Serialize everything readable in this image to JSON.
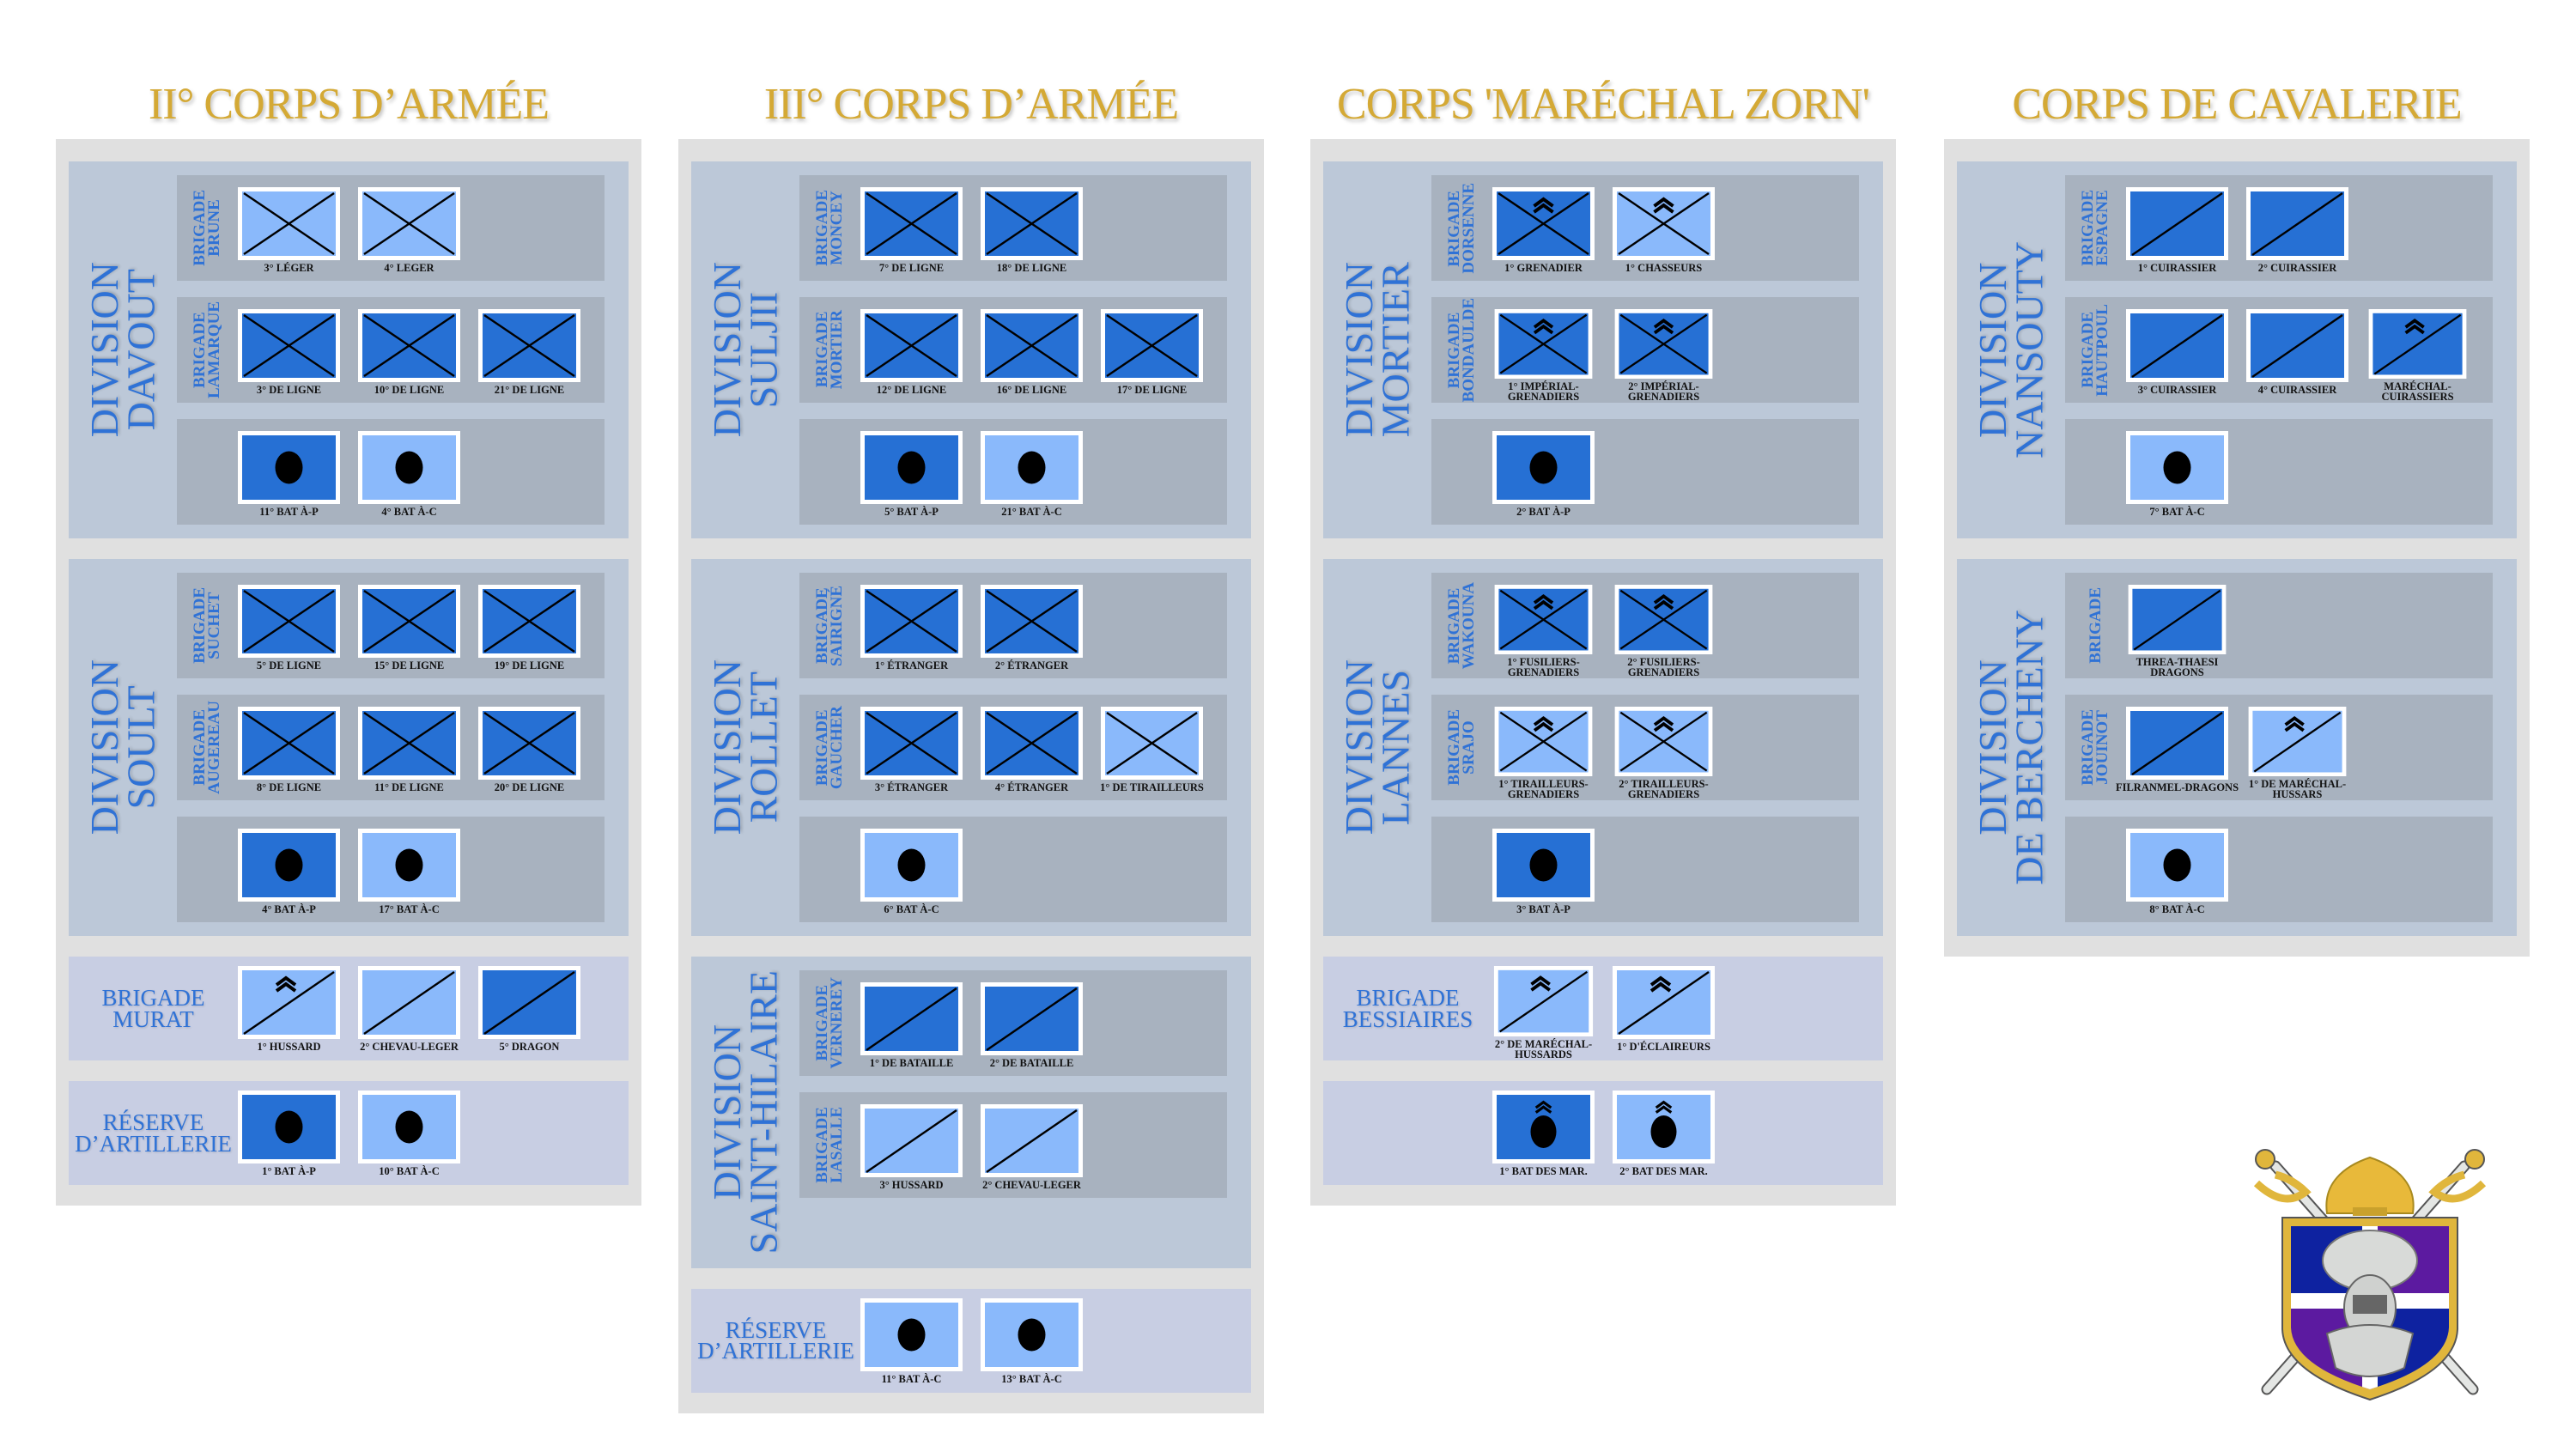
{
  "colors": {
    "dark": "#2670d4",
    "light": "#8ab9fb",
    "title": "#d4a935",
    "label": "#2f72d6",
    "column_bg": "#e0e0e0",
    "division_bg": "#bcc8d8",
    "row_bg": "#a8b2bf",
    "unit_bg": "#c8cee3"
  },
  "corps": [
    {
      "title": "II° CORPS D’ARMÉE",
      "units": [
        {
          "kind": "division",
          "name_lines": [
            "DIVISION",
            "DAVOUT"
          ],
          "brigades": [
            {
              "label_lines": [
                "BRIGADE",
                "BRUNE"
              ],
              "flags": [
                {
                  "label": "3° LÉGER",
                  "color": "light",
                  "symbol": "cross"
                },
                {
                  "label": "4° LEGER",
                  "color": "light",
                  "symbol": "cross"
                }
              ]
            },
            {
              "label_lines": [
                "BRIGADE",
                "LAMARQUE"
              ],
              "flags": [
                {
                  "label": "3° DE LIGNE",
                  "color": "dark",
                  "symbol": "cross"
                },
                {
                  "label": "10° DE LIGNE",
                  "color": "dark",
                  "symbol": "cross"
                },
                {
                  "label": "21° DE LIGNE",
                  "color": "dark",
                  "symbol": "cross"
                }
              ]
            },
            {
              "label_lines": [],
              "flags": [
                {
                  "label": "11° BAT À-P",
                  "color": "dark",
                  "symbol": "dot"
                },
                {
                  "label": "4° BAT À-C",
                  "color": "light",
                  "symbol": "dot"
                }
              ]
            }
          ]
        },
        {
          "kind": "division",
          "name_lines": [
            "DIVISION",
            "SOULT"
          ],
          "brigades": [
            {
              "label_lines": [
                "BRIGADE",
                "SUCHET"
              ],
              "flags": [
                {
                  "label": "5° DE LIGNE",
                  "color": "dark",
                  "symbol": "cross"
                },
                {
                  "label": "15° DE LIGNE",
                  "color": "dark",
                  "symbol": "cross"
                },
                {
                  "label": "19° DE LIGNE",
                  "color": "dark",
                  "symbol": "cross"
                }
              ]
            },
            {
              "label_lines": [
                "BRIGADE",
                "AUGEREAU"
              ],
              "flags": [
                {
                  "label": "8° DE LIGNE",
                  "color": "dark",
                  "symbol": "cross"
                },
                {
                  "label": "11° DE LIGNE",
                  "color": "dark",
                  "symbol": "cross"
                },
                {
                  "label": "20° DE LIGNE",
                  "color": "dark",
                  "symbol": "cross"
                }
              ]
            },
            {
              "label_lines": [],
              "flags": [
                {
                  "label": "4° BAT À-P",
                  "color": "dark",
                  "symbol": "dot"
                },
                {
                  "label": "17° BAT À-C",
                  "color": "light",
                  "symbol": "dot"
                }
              ]
            }
          ]
        },
        {
          "kind": "unit",
          "name_lines": [
            "BRIGADE",
            "MURAT"
          ],
          "flags": [
            {
              "label": "1° HUSSARD",
              "color": "light",
              "symbol": "diag",
              "chevron": true
            },
            {
              "label": "2° CHEVAU-LEGER",
              "color": "light",
              "symbol": "diag"
            },
            {
              "label": "5° DRAGON",
              "color": "dark",
              "symbol": "diag"
            }
          ]
        },
        {
          "kind": "unit",
          "name_lines": [
            "RÉSERVE",
            "D’ARTILLERIE"
          ],
          "flags": [
            {
              "label": "1° BAT À-P",
              "color": "dark",
              "symbol": "dot"
            },
            {
              "label": "10° BAT À-C",
              "color": "light",
              "symbol": "dot"
            }
          ]
        }
      ]
    },
    {
      "title": "III° CORPS D’ARMÉE",
      "units": [
        {
          "kind": "division",
          "name_lines": [
            "DIVISION",
            "SULJII"
          ],
          "brigades": [
            {
              "label_lines": [
                "BRIGADE",
                "MONCEY"
              ],
              "flags": [
                {
                  "label": "7° DE LIGNE",
                  "color": "dark",
                  "symbol": "cross"
                },
                {
                  "label": "18° DE LIGNE",
                  "color": "dark",
                  "symbol": "cross"
                }
              ]
            },
            {
              "label_lines": [
                "BRIGADE",
                "MORTIER"
              ],
              "flags": [
                {
                  "label": "12° DE LIGNE",
                  "color": "dark",
                  "symbol": "cross"
                },
                {
                  "label": "16° DE LIGNE",
                  "color": "dark",
                  "symbol": "cross"
                },
                {
                  "label": "17° DE LIGNE",
                  "color": "dark",
                  "symbol": "cross"
                }
              ]
            },
            {
              "label_lines": [],
              "flags": [
                {
                  "label": "5° BAT À-P",
                  "color": "dark",
                  "symbol": "dot"
                },
                {
                  "label": "21° BAT À-C",
                  "color": "light",
                  "symbol": "dot"
                }
              ]
            }
          ]
        },
        {
          "kind": "division",
          "name_lines": [
            "DIVISION",
            "ROLLET"
          ],
          "brigades": [
            {
              "label_lines": [
                "BRIGADE",
                "SAIRIGNÉ"
              ],
              "flags": [
                {
                  "label": "1° ÉTRANGER",
                  "color": "dark",
                  "symbol": "cross"
                },
                {
                  "label": "2° ÉTRANGER",
                  "color": "dark",
                  "symbol": "cross"
                }
              ]
            },
            {
              "label_lines": [
                "BRIGADE",
                "GAUCHER"
              ],
              "flags": [
                {
                  "label": "3° ÉTRANGER",
                  "color": "dark",
                  "symbol": "cross"
                },
                {
                  "label": "4° ÉTRANGER",
                  "color": "dark",
                  "symbol": "cross"
                },
                {
                  "label": "1° DE TIRAILLEURS",
                  "color": "light",
                  "symbol": "cross"
                }
              ]
            },
            {
              "label_lines": [],
              "flags": [
                {
                  "label": "6° BAT À-C",
                  "color": "light",
                  "symbol": "dot"
                }
              ]
            }
          ]
        },
        {
          "kind": "division",
          "name_lines": [
            "DIVISION",
            "SAINT-HILAIRE"
          ],
          "brigades": [
            {
              "label_lines": [
                "BRIGADE",
                "VERNEREY"
              ],
              "flags": [
                {
                  "label": "1° DE BATAILLE",
                  "color": "dark",
                  "symbol": "diag"
                },
                {
                  "label": "2° DE BATAILLE",
                  "color": "dark",
                  "symbol": "diag"
                }
              ]
            },
            {
              "label_lines": [
                "BRIGADE",
                "LASALLE"
              ],
              "flags": [
                {
                  "label": "3° HUSSARD",
                  "color": "light",
                  "symbol": "diag"
                },
                {
                  "label": "2° CHEVAU-LEGER",
                  "color": "light",
                  "symbol": "diag"
                }
              ]
            }
          ]
        },
        {
          "kind": "unit",
          "name_lines": [
            "RÉSERVE",
            "D’ARTILLERIE"
          ],
          "flags": [
            {
              "label": "11° BAT À-C",
              "color": "light",
              "symbol": "dot"
            },
            {
              "label": "13° BAT À-C",
              "color": "light",
              "symbol": "dot"
            }
          ]
        }
      ]
    },
    {
      "title": "CORPS 'MARÉCHAL ZORN'",
      "units": [
        {
          "kind": "division",
          "name_lines": [
            "DIVISION",
            "MORTIER"
          ],
          "brigades": [
            {
              "label_lines": [
                "BRIGADE",
                "DORSENNE"
              ],
              "flags": [
                {
                  "label": "1° GRENADIER",
                  "color": "dark",
                  "symbol": "cross",
                  "chevron": true
                },
                {
                  "label": "1° CHASSEURS",
                  "color": "light",
                  "symbol": "cross",
                  "chevron": true
                }
              ]
            },
            {
              "label_lines": [
                "BRIGADE",
                "BONDAULDE"
              ],
              "flags": [
                {
                  "label": "1° IMPÉRIAL-GRENADIERS",
                  "color": "dark",
                  "symbol": "cross",
                  "chevron": true
                },
                {
                  "label": "2° IMPÉRIAL-GRENADIERS",
                  "color": "dark",
                  "symbol": "cross",
                  "chevron": true
                }
              ]
            },
            {
              "label_lines": [],
              "flags": [
                {
                  "label": "2° BAT À-P",
                  "color": "dark",
                  "symbol": "dot"
                }
              ]
            }
          ]
        },
        {
          "kind": "division",
          "name_lines": [
            "DIVISION",
            "LANNES"
          ],
          "brigades": [
            {
              "label_lines": [
                "BRIGADE",
                "WAKOUNA"
              ],
              "flags": [
                {
                  "label": "1° FUSILIERS-GRENADIERS",
                  "color": "dark",
                  "symbol": "cross",
                  "chevron": true
                },
                {
                  "label": "2° FUSILIERS-GRENADIERS",
                  "color": "dark",
                  "symbol": "cross",
                  "chevron": true
                }
              ]
            },
            {
              "label_lines": [
                "BRIGADE",
                "SRAJO"
              ],
              "flags": [
                {
                  "label": "1° TIRAILLEURS-GRENADIERS",
                  "color": "light",
                  "symbol": "cross",
                  "chevron": true
                },
                {
                  "label": "2° TIRAILLEURS-GRENADIERS",
                  "color": "light",
                  "symbol": "cross",
                  "chevron": true
                }
              ]
            },
            {
              "label_lines": [],
              "flags": [
                {
                  "label": "3° BAT À-P",
                  "color": "dark",
                  "symbol": "dot"
                }
              ]
            }
          ]
        },
        {
          "kind": "unit",
          "name_lines": [
            "BRIGADE",
            "BESSIAIRES"
          ],
          "flags": [
            {
              "label": "2° DE MARÉCHAL-HUSSARDS",
              "color": "light",
              "symbol": "diag",
              "chevron": true
            },
            {
              "label": "1° D'ÉCLAIREURS",
              "color": "light",
              "symbol": "diag",
              "chevron": true
            }
          ]
        },
        {
          "kind": "unit",
          "name_lines": [],
          "flags": [
            {
              "label": "1° BAT DES MAR.",
              "color": "dark",
              "symbol": "dot",
              "chevron": true
            },
            {
              "label": "2° BAT DES MAR.",
              "color": "light",
              "symbol": "dot",
              "chevron": true
            }
          ]
        }
      ]
    },
    {
      "title": "CORPS DE CAVALERIE",
      "units": [
        {
          "kind": "division",
          "name_lines": [
            "DIVISION",
            "NANSOUTY"
          ],
          "brigades": [
            {
              "label_lines": [
                "BRIGADE",
                "ESPAGNE"
              ],
              "flags": [
                {
                  "label": "1° CUIRASSIER",
                  "color": "dark",
                  "symbol": "diag"
                },
                {
                  "label": "2° CUIRASSIER",
                  "color": "dark",
                  "symbol": "diag"
                }
              ]
            },
            {
              "label_lines": [
                "BRIGADE",
                "HAUTPOUL"
              ],
              "flags": [
                {
                  "label": "3° CUIRASSIER",
                  "color": "dark",
                  "symbol": "diag"
                },
                {
                  "label": "4° CUIRASSIER",
                  "color": "dark",
                  "symbol": "diag"
                },
                {
                  "label": "MARÉCHAL-CUIRASSIERS",
                  "color": "dark",
                  "symbol": "diag",
                  "chevron": true
                }
              ]
            },
            {
              "label_lines": [],
              "flags": [
                {
                  "label": "7° BAT À-C",
                  "color": "light",
                  "symbol": "dot"
                }
              ]
            }
          ]
        },
        {
          "kind": "division",
          "name_lines": [
            "DIVISION",
            "DE BERCHENY"
          ],
          "brigades": [
            {
              "label_lines": [
                "BRIGADE"
              ],
              "flags": [
                {
                  "label": "THREA-THAESI DRAGONS",
                  "color": "dark",
                  "symbol": "diag"
                }
              ]
            },
            {
              "label_lines": [
                "BRIGADE",
                "JOUINOT"
              ],
              "flags": [
                {
                  "label": "FILRANMEL-DRAGONS",
                  "color": "dark",
                  "symbol": "diag"
                },
                {
                  "label": "1° DE MARÉCHAL-HUSSARS",
                  "color": "light",
                  "symbol": "diag",
                  "chevron": true
                }
              ]
            },
            {
              "label_lines": [],
              "flags": [
                {
                  "label": "8° BAT À-C",
                  "color": "light",
                  "symbol": "dot"
                }
              ]
            }
          ]
        }
      ]
    }
  ],
  "emblem": {
    "icon": "crest-shield-crossed-swords-knight-helmet"
  }
}
